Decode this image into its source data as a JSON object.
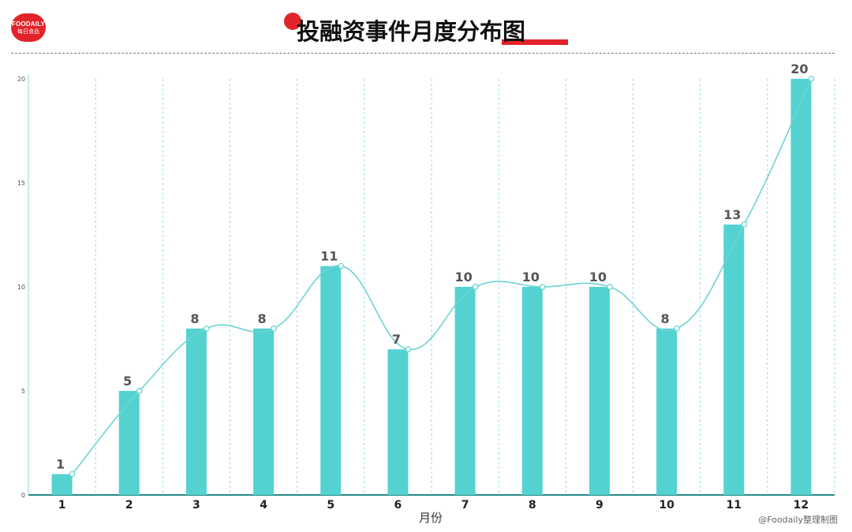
{
  "logo": {
    "line1": "FOODAILY",
    "line2": "每日食品"
  },
  "title": "投融资事件月度分布图",
  "source": "@Foodaily整理制图",
  "colors": {
    "bar": "#54d2d2",
    "line": "#6fd3d3",
    "accent": "#e2232a",
    "axis": "#2a8a88"
  },
  "chart_data": {
    "type": "bar",
    "categories": [
      "1",
      "2",
      "3",
      "4",
      "5",
      "6",
      "7",
      "8",
      "9",
      "10",
      "11",
      "12"
    ],
    "values": [
      1,
      5,
      8,
      8,
      11,
      7,
      10,
      10,
      10,
      8,
      13,
      20
    ],
    "line_overlay": {
      "type": "line",
      "smooth": true,
      "values": [
        1,
        5,
        8,
        8,
        11,
        7,
        10,
        10,
        10,
        8,
        13,
        20
      ]
    },
    "xlabel": "月份",
    "ylabel": "",
    "ylim": [
      0,
      20
    ],
    "yticks": [
      0,
      5,
      10,
      15,
      20
    ],
    "grid": "vertical-dashed",
    "data_labels": true
  }
}
